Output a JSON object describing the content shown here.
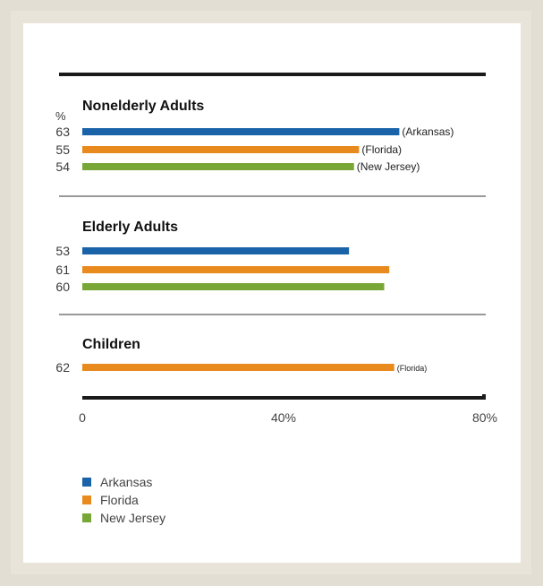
{
  "chart_data": {
    "type": "bar",
    "orientation": "horizontal",
    "unit_label": "%",
    "xlim": [
      0,
      80
    ],
    "ticks": [
      {
        "value": 0,
        "label": "0"
      },
      {
        "value": 40,
        "label": "40%"
      },
      {
        "value": 80,
        "label": "80%"
      }
    ],
    "series": [
      {
        "name": "Arkansas",
        "color": "#1a63a8"
      },
      {
        "name": "Florida",
        "color": "#e98a1e"
      },
      {
        "name": "New Jersey",
        "color": "#78a637"
      }
    ],
    "groups": [
      {
        "title": "Nonelderly Adults",
        "bars": [
          {
            "series": "Arkansas",
            "value": 63,
            "label": "63",
            "annotation": "(Arkansas)"
          },
          {
            "series": "Florida",
            "value": 55,
            "label": "55",
            "annotation": "(Florida)"
          },
          {
            "series": "New Jersey",
            "value": 54,
            "label": "54",
            "annotation": "(New Jersey)"
          }
        ]
      },
      {
        "title": "Elderly Adults",
        "bars": [
          {
            "series": "Arkansas",
            "value": 53,
            "label": "53",
            "annotation": ""
          },
          {
            "series": "Florida",
            "value": 61,
            "label": "61",
            "annotation": ""
          },
          {
            "series": "New Jersey",
            "value": 60,
            "label": "60",
            "annotation": ""
          }
        ]
      },
      {
        "title": "Children",
        "bars": [
          {
            "series": "Florida",
            "value": 62,
            "label": "62",
            "annotation": "(Florida)"
          }
        ]
      }
    ]
  }
}
